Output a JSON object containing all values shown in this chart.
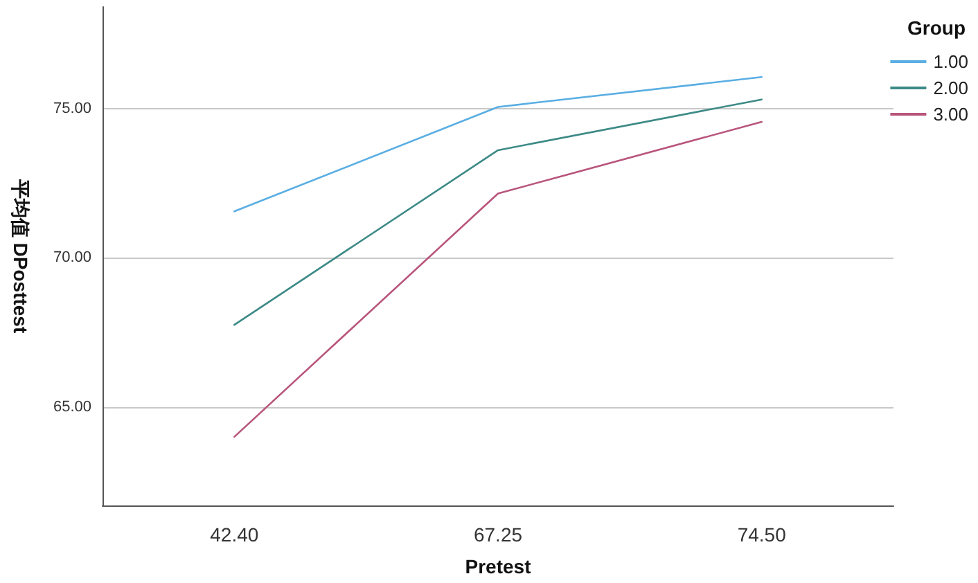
{
  "chart_data": {
    "type": "line",
    "xlabel": "Pretest",
    "ylabel": "平均值 DPosttest",
    "legend_title": "Group",
    "categories": [
      "42.40",
      "67.25",
      "74.50"
    ],
    "series": [
      {
        "name": "1.00",
        "color": "#5aaee3",
        "values": [
          71.55,
          75.05,
          76.05
        ]
      },
      {
        "name": "2.00",
        "color": "#3d8a86",
        "values": [
          67.75,
          73.6,
          75.3
        ]
      },
      {
        "name": "3.00",
        "color": "#b8557c",
        "values": [
          64.0,
          72.15,
          74.55
        ]
      }
    ],
    "ylim": [
      61.7,
      78.4
    ],
    "yticks": [
      {
        "value": 65,
        "label": "65.00"
      },
      {
        "value": 70,
        "label": "70.00"
      },
      {
        "value": 75,
        "label": "75.00"
      }
    ],
    "grid": "y",
    "legend": "top right",
    "marker": "none",
    "line_style": "solid"
  }
}
